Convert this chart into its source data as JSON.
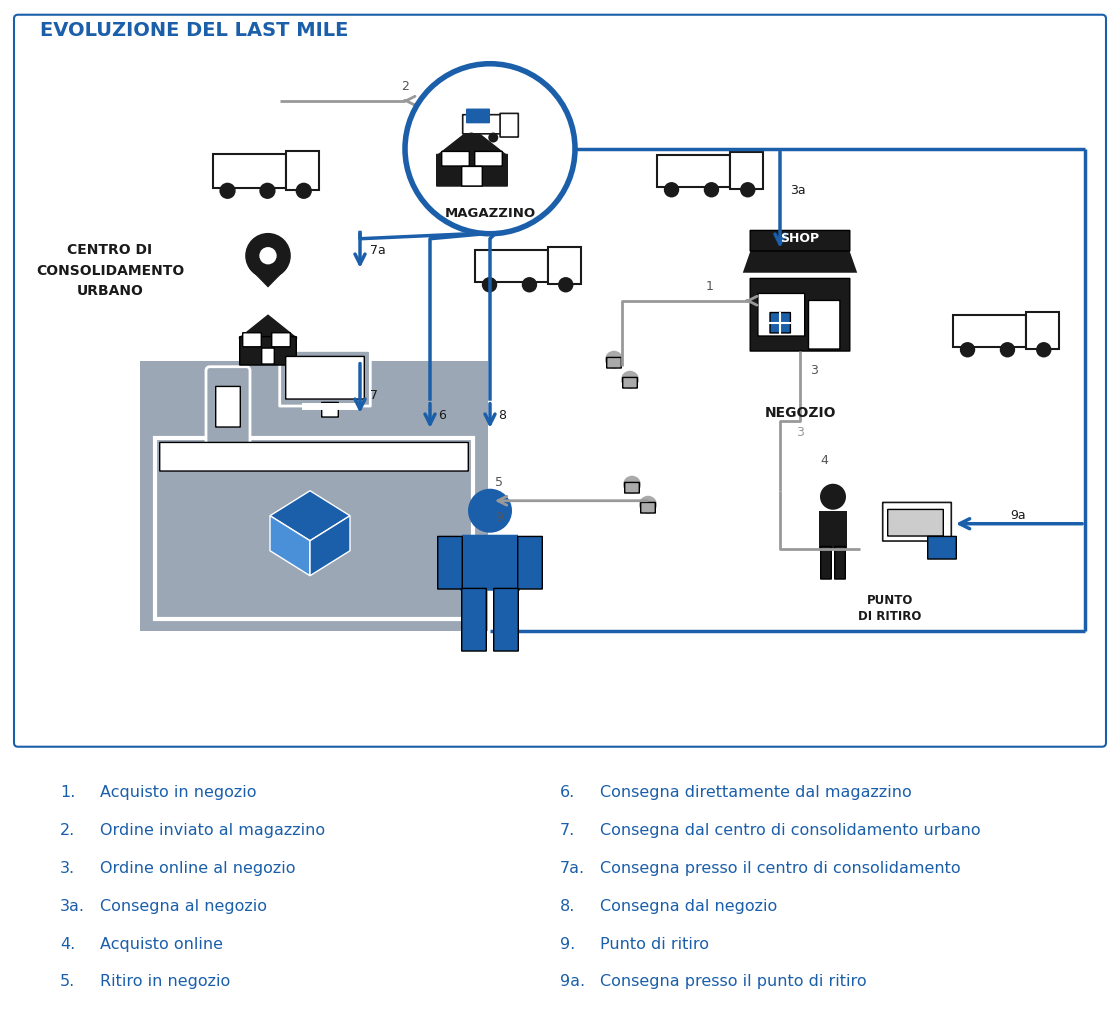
{
  "title": "EVOLUZIONE DEL LAST MILE",
  "blue": "#1b5faa",
  "gray_arrow": "#999999",
  "dark": "#1a1a1a",
  "panel_gray": "#9ba7b4",
  "legend_left": [
    [
      "1.",
      "Acquisto in negozio"
    ],
    [
      "2.",
      "Ordine inviato al magazzino"
    ],
    [
      "3.",
      "Ordine online al negozio"
    ],
    [
      "3a.",
      "Consegna al negozio"
    ],
    [
      "4.",
      "Acquisto online"
    ],
    [
      "5.",
      "Ritiro in negozio"
    ]
  ],
  "legend_right": [
    [
      "6.",
      "Consegna direttamente dal magazzino"
    ],
    [
      "7.",
      "Consegna dal centro di consolidamento urbano"
    ],
    [
      "7a.",
      "Consegna presso il centro di consolidamento"
    ],
    [
      "8.",
      "Consegna dal negozio"
    ],
    [
      "9.",
      "Punto di ritiro"
    ],
    [
      "9a.",
      "Consegna presso il punto di ritiro"
    ]
  ]
}
